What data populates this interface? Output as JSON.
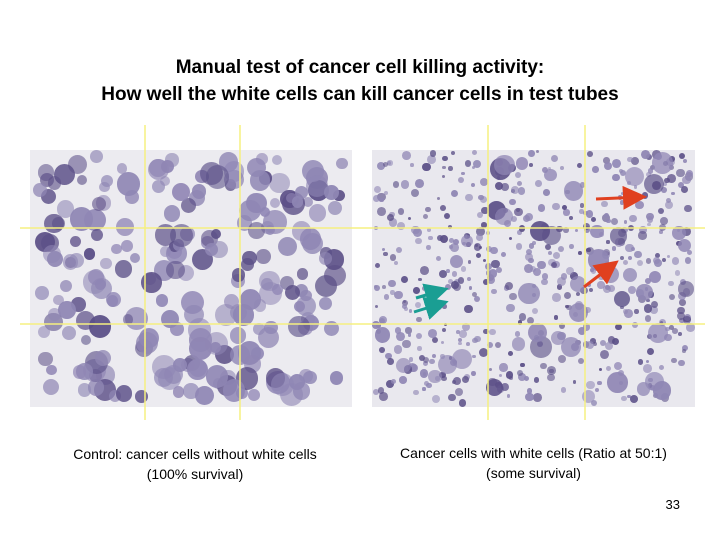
{
  "slide": {
    "title_line1": "Manual test of cancer cell killing activity:",
    "title_line2": "How well the white cells can kill cancer cells in test tubes",
    "left_caption_line1": "Control: cancer cells without white cells",
    "left_caption_line2": "(100% survival)",
    "right_caption_line1": "Cancer cells with white cells (Ratio at 50:1)",
    "right_caption_line2": "(some survival)",
    "page_number": "33"
  },
  "colors": {
    "background": "#ffffff",
    "cell_purple": "#8f86b4",
    "cell_dark": "#5b4f87",
    "gridline": "#f5f080",
    "arrow_red": "#e0401f",
    "arrow_teal": "#1a9e93"
  }
}
